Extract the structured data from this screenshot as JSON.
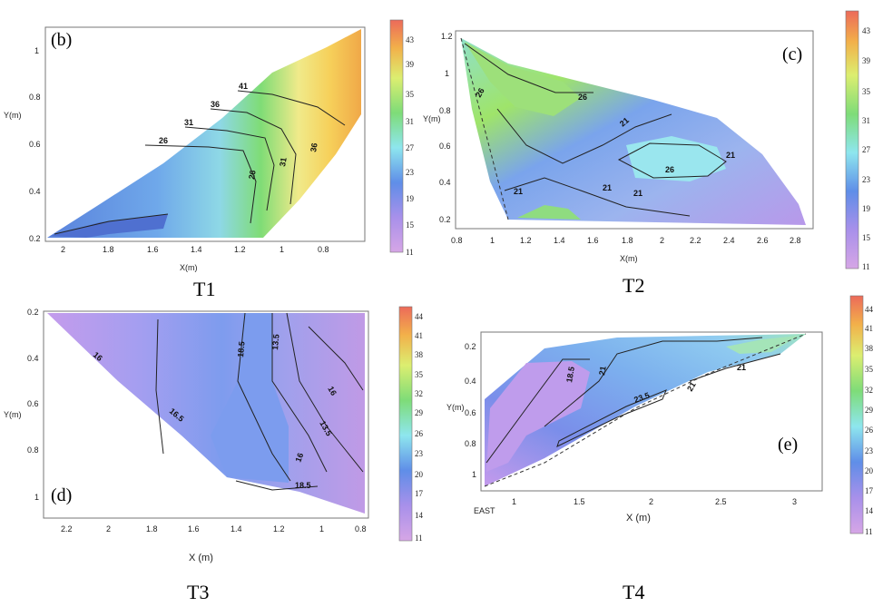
{
  "chart_data": [
    {
      "type": "contour",
      "panel_label": "(b)",
      "caption": "T1",
      "xlabel": "X(m)",
      "ylabel": "Y(m)",
      "x_ticks": [
        "2",
        "1.8",
        "1.6",
        "1.4",
        "1.2",
        "1",
        "0.8"
      ],
      "y_ticks": [
        "1",
        "0.8",
        "0.6",
        "0.4",
        "0.2"
      ],
      "contour_labels": [
        "41",
        "36",
        "31",
        "26",
        "26",
        "31",
        "36"
      ],
      "colorbar_ticks": [
        "43",
        "39",
        "35",
        "31",
        "27",
        "23",
        "19",
        "15",
        "11"
      ]
    },
    {
      "type": "contour",
      "panel_label": "(c)",
      "caption": "T2",
      "xlabel": "X(m)",
      "ylabel": "Y(m)",
      "x_ticks": [
        "0.8",
        "1",
        "1.2",
        "1.4",
        "1.6",
        "1.8",
        "2",
        "2.2",
        "2.4",
        "2.6",
        "2.8"
      ],
      "y_ticks": [
        "1.2",
        "1",
        "0.8",
        "0.6",
        "0.4",
        "0.2"
      ],
      "contour_labels": [
        "26",
        "26",
        "21",
        "21",
        "21",
        "21",
        "26",
        "21"
      ],
      "colorbar_ticks": [
        "43",
        "39",
        "35",
        "31",
        "27",
        "23",
        "19",
        "15",
        "11"
      ]
    },
    {
      "type": "contour",
      "panel_label": "(d)",
      "caption": "T3",
      "xlabel": "X (m)",
      "ylabel": "Y(m)",
      "x_ticks": [
        "2.2",
        "2",
        "1.8",
        "1.6",
        "1.4",
        "1.2",
        "1",
        "0.8"
      ],
      "y_ticks": [
        "0.2",
        "0.4",
        "0.6",
        "0.8",
        "1"
      ],
      "contour_labels": [
        "16",
        "16.5",
        "18.5",
        "13.5",
        "16",
        "13.5",
        "16",
        "18.5"
      ],
      "colorbar_ticks": [
        "44",
        "41",
        "38",
        "35",
        "32",
        "29",
        "26",
        "23",
        "20",
        "17",
        "14",
        "11"
      ]
    },
    {
      "type": "contour",
      "panel_label": "(e)",
      "caption": "T4",
      "xlabel": "X (m)",
      "ylabel": "Y(m)",
      "corner_label": "EAST",
      "x_ticks": [
        "1",
        "1.5",
        "2",
        "2.5",
        "3"
      ],
      "y_ticks": [
        "0.2",
        "0.4",
        "0.6",
        "0.8",
        "1"
      ],
      "contour_labels": [
        "18.5",
        "21",
        "23.5",
        "21",
        "21"
      ],
      "colorbar_ticks": [
        "44",
        "41",
        "38",
        "35",
        "32",
        "29",
        "26",
        "23",
        "20",
        "17",
        "14",
        "11"
      ]
    }
  ],
  "colors": {
    "purple": "#c896e6",
    "violet": "#a890ea",
    "blue": "#6a8ee8",
    "sky": "#74c4ec",
    "cyan": "#9aeef0",
    "green": "#7edc78",
    "lime": "#cfe870",
    "yellow": "#f6e05a",
    "orange": "#f2b04a",
    "red": "#ec6a5a"
  }
}
